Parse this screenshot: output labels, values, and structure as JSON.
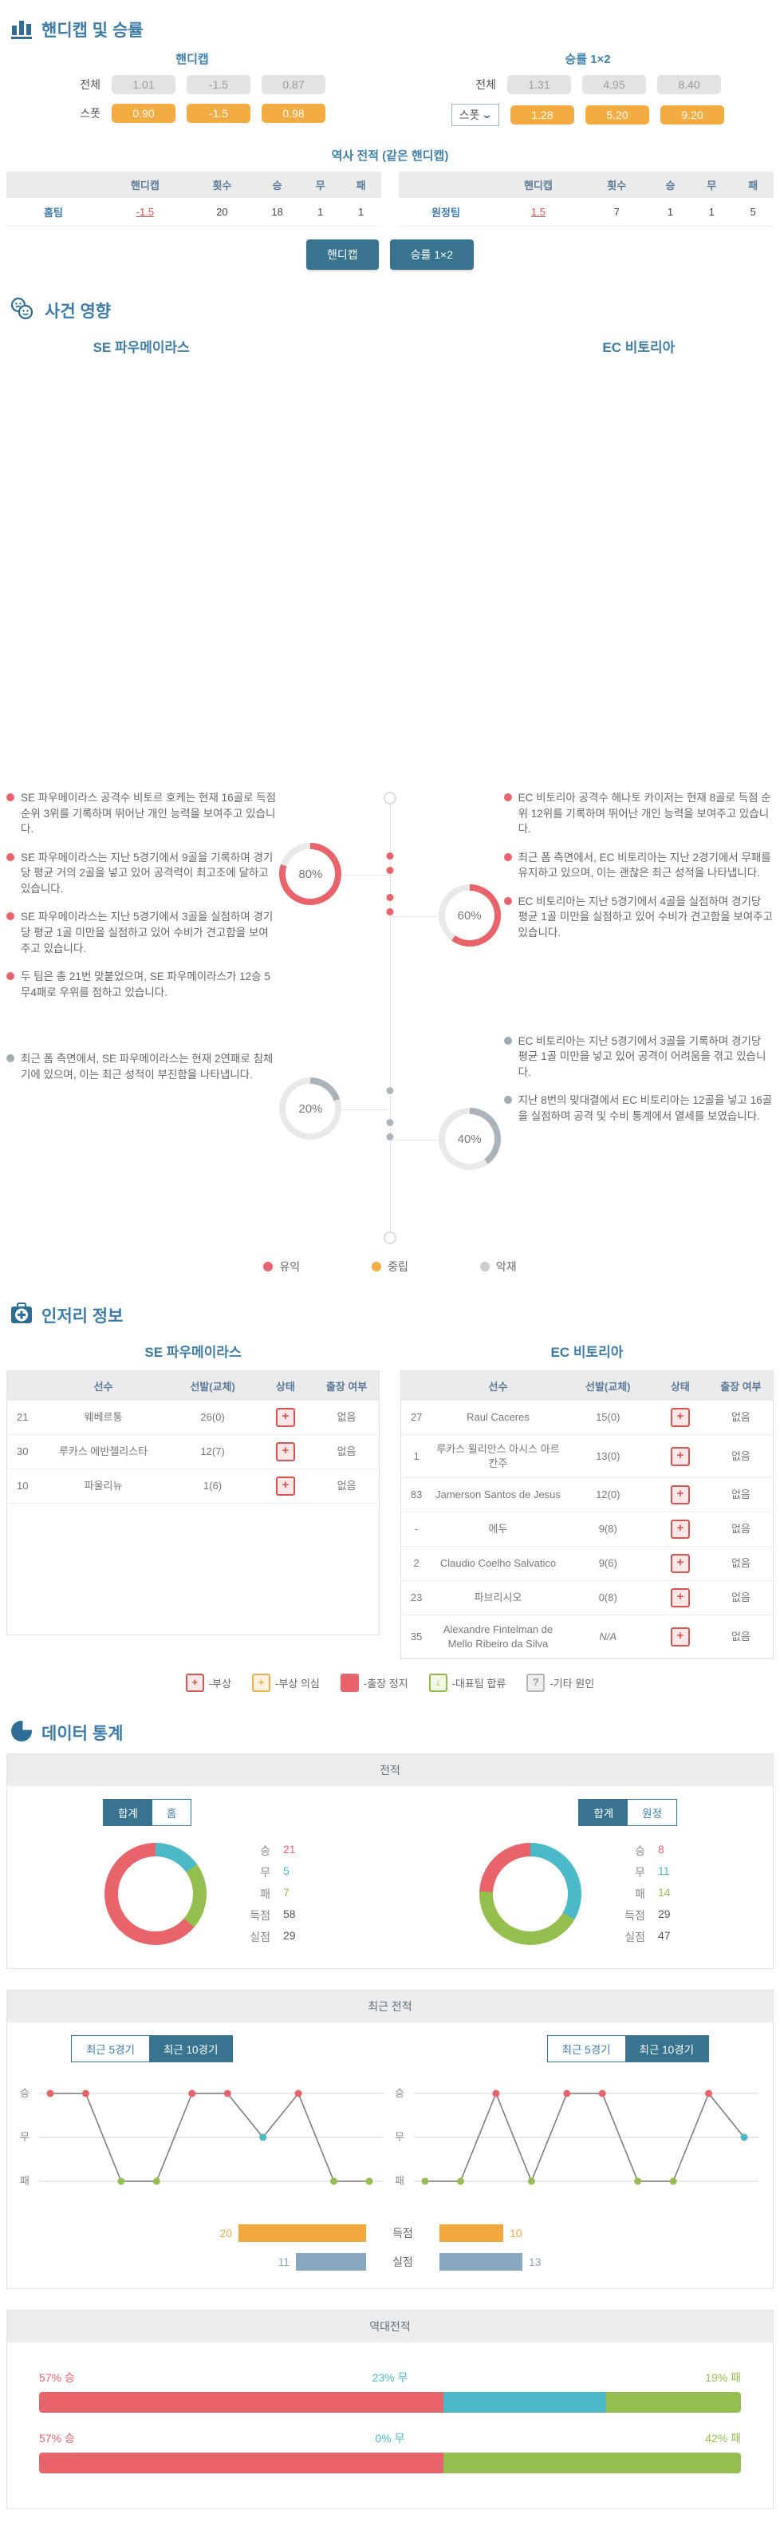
{
  "colors": {
    "accent_blue": "#3d7ca8",
    "dark_button": "#38738f",
    "win_red": "#e8636a",
    "draw_teal": "#4cb9c8",
    "lose_green": "#94bf4e",
    "orange": "#f2ac41",
    "neutral_gray": "#cccccc",
    "bad_gray": "#aab4ba",
    "goals_orange": "#f2a83c",
    "conceded_slate": "#87a8c0"
  },
  "section1": {
    "title": "핸디캡 및 승률",
    "handicap": {
      "heading": "핸디캡",
      "all_label": "전체",
      "all": [
        "1.01",
        "-1.5",
        "0.87"
      ],
      "spot_label": "스폿",
      "spot": [
        "0.90",
        "-1.5",
        "0.98"
      ]
    },
    "odds1x2": {
      "heading": "승률 1×2",
      "all_label": "전체",
      "all": [
        "1.31",
        "4.95",
        "8.40"
      ],
      "spot_label": "스폿",
      "spot": [
        "1.28",
        "5.20",
        "9.20"
      ]
    },
    "history_title": "역사 전적 (같은 핸디캡)",
    "table_headers": [
      "",
      "핸디캡",
      "횟수",
      "승",
      "무",
      "패"
    ],
    "home_row": {
      "team": "홈팀",
      "handicap": "-1.5",
      "count": "20",
      "win": "18",
      "draw": "1",
      "lose": "1"
    },
    "away_row": {
      "team": "원정팀",
      "handicap": "1.5",
      "count": "7",
      "win": "1",
      "draw": "1",
      "lose": "5"
    },
    "buttons": {
      "handicap": "핸디캡",
      "odds": "승률 1×2"
    }
  },
  "section2": {
    "title": "사건 영향",
    "home_team": "SE 파우메이라스",
    "away_team": "EC 비토리아",
    "home_good": [
      "SE 파우메이라스 공격수 비토르 호케는 현재 16골로 득점 순위 3위를 기록하며 뛰어난 개인 능력을 보여주고 있습니다.",
      "SE 파우메이라스는 지난 5경기에서 9골을 기록하며 경기당 평균 거의 2골을 넣고 있어 공격력이 최고조에 달하고 있습니다.",
      "SE 파우메이라스는 지난 5경기에서 3골을 실점하며 경기당 평균 1골 미만을 실점하고 있어 수비가 견고함을 보여주고 있습니다.",
      "두 팀은 총 21번 맞붙었으며, SE 파우메이라스가 12승 5무4패로 우위를 점하고 있습니다."
    ],
    "home_bad": [
      "최근 폼 측면에서, SE 파우메이라스는 현재 2연패로 침체기에 있으며, 이는 최근 성적이 부진함을 나타냅니다."
    ],
    "away_good": [
      "EC 비토리아 공격수 헤나토 카이저는 현재 8골로 득점 순위 12위를 기록하며 뛰어난 개인 능력을 보여주고 있습니다.",
      "최근 폼 측면에서, EC 비토리아는 지난 2경기에서 무패를 유지하고 있으며, 이는 괜찮은 최근 성적을 나타냅니다.",
      "EC 비토리아는 지난 5경기에서 4골을 실점하며 경기당 평균 1골 미만을 실점하고 있어 수비가 견고함을 보여주고 있습니다."
    ],
    "away_bad": [
      "EC 비토리아는 지난 5경기에서 3골을 기록하며 경기당 평균 1골 미만을 넣고 있어 공격이 어려움을 겪고 있습니다.",
      "지난 8번의 맞대결에서 EC 비토리아는 12골을 넣고 16골을 실점하며 공격 및 수비 통계에서 열세를 보였습니다."
    ],
    "gauges": [
      {
        "id": "home-good",
        "pct": 80,
        "label": "80%",
        "type": "good"
      },
      {
        "id": "away-good",
        "pct": 60,
        "label": "60%",
        "type": "good"
      },
      {
        "id": "home-bad",
        "pct": 20,
        "label": "20%",
        "type": "bad"
      },
      {
        "id": "away-bad",
        "pct": 40,
        "label": "40%",
        "type": "bad"
      }
    ],
    "legend": [
      {
        "label": "유익",
        "color": "#e8636a"
      },
      {
        "label": "중립",
        "color": "#f2ac41"
      },
      {
        "label": "악재",
        "color": "#cccccc"
      }
    ]
  },
  "section3": {
    "title": "인저리 정보",
    "home_team": "SE 파우메이라스",
    "away_team": "EC 비토리아",
    "headers": [
      "선수",
      "선발(교체)",
      "상태",
      "출장 여부"
    ],
    "home_rows": [
      {
        "num": "21",
        "name": "웨베르통",
        "starts": "26(0)",
        "status": "injury",
        "avail": "없음"
      },
      {
        "num": "30",
        "name": "루카스 에반젤리스타",
        "starts": "12(7)",
        "status": "injury",
        "avail": "없음"
      },
      {
        "num": "10",
        "name": "파울리뉴",
        "starts": "1(6)",
        "status": "injury",
        "avail": "없음"
      }
    ],
    "away_rows": [
      {
        "num": "27",
        "name": "Raul Caceres",
        "starts": "15(0)",
        "status": "injury",
        "avail": "없음"
      },
      {
        "num": "1",
        "name": "루카스 윌리안스 아시스 아르칸주",
        "starts": "13(0)",
        "status": "injury",
        "avail": "없음"
      },
      {
        "num": "83",
        "name": "Jamerson Santos de Jesus",
        "starts": "12(0)",
        "status": "injury",
        "avail": "없음"
      },
      {
        "num": "-",
        "name": "에두",
        "starts": "9(8)",
        "status": "injury",
        "avail": "없음"
      },
      {
        "num": "2",
        "name": "Claudio Coelho Salvatico",
        "starts": "9(6)",
        "status": "injury",
        "avail": "없음"
      },
      {
        "num": "23",
        "name": "파브리시오",
        "starts": "0(8)",
        "status": "injury",
        "avail": "없음"
      },
      {
        "num": "35",
        "name": "Alexandre Fintelman de Mello Ribeiro da Silva",
        "starts": "N/A",
        "status": "injury",
        "avail": "없음"
      }
    ],
    "legend": [
      {
        "glyph": "+",
        "cls": "lg-injury",
        "label": "-부상"
      },
      {
        "glyph": "+",
        "cls": "lg-suspect",
        "label": "-부상 의심"
      },
      {
        "glyph": "",
        "cls": "lg-susp",
        "label": "-출장 정지"
      },
      {
        "glyph": "↓",
        "cls": "lg-nat",
        "label": "-대표팀 합류"
      },
      {
        "glyph": "?",
        "cls": "lg-other",
        "label": "-기타 원인"
      }
    ]
  },
  "section4": {
    "title": "데이터 통계",
    "record_panel": {
      "header": "전적",
      "home_toggle": {
        "options": [
          "합계",
          "홈"
        ],
        "active": 0
      },
      "away_toggle": {
        "options": [
          "합계",
          "원정"
        ],
        "active": 0
      },
      "stat_labels": [
        "승",
        "무",
        "패",
        "득점",
        "실점"
      ],
      "home_stats": {
        "win": 21,
        "draw": 5,
        "lose": 7,
        "goals": 58,
        "conceded": 29
      },
      "away_stats": {
        "win": 8,
        "draw": 11,
        "lose": 14,
        "goals": 29,
        "conceded": 47
      }
    },
    "recent_panel": {
      "header": "최근 전적",
      "toggle_options": [
        "최근 5경기",
        "최근 10경기"
      ],
      "toggle_active": 1,
      "axis_labels": [
        "승",
        "무",
        "패"
      ],
      "home_results": [
        "W",
        "W",
        "L",
        "L",
        "W",
        "W",
        "D",
        "W",
        "L",
        "L"
      ],
      "away_results": [
        "L",
        "L",
        "W",
        "L",
        "W",
        "W",
        "L",
        "L",
        "W",
        "D"
      ],
      "goals_label": "득점",
      "conceded_label": "실점",
      "home_goals": 20,
      "home_conceded": 11,
      "away_goals": 10,
      "away_conceded": 13
    },
    "h2h_panel": {
      "header": "역대전적",
      "bars": [
        {
          "segments": [
            {
              "pct": 57,
              "label": "57% 승",
              "cls": "w"
            },
            {
              "pct": 23,
              "label": "23% 무",
              "cls": "d"
            },
            {
              "pct": 19,
              "label": "19% 패",
              "cls": "l"
            }
          ]
        },
        {
          "segments": [
            {
              "pct": 57,
              "label": "57% 승",
              "cls": "w"
            },
            {
              "pct": 0,
              "label": "0% 무",
              "cls": "d"
            },
            {
              "pct": 42,
              "label": "42% 패",
              "cls": "l"
            }
          ]
        }
      ]
    }
  }
}
